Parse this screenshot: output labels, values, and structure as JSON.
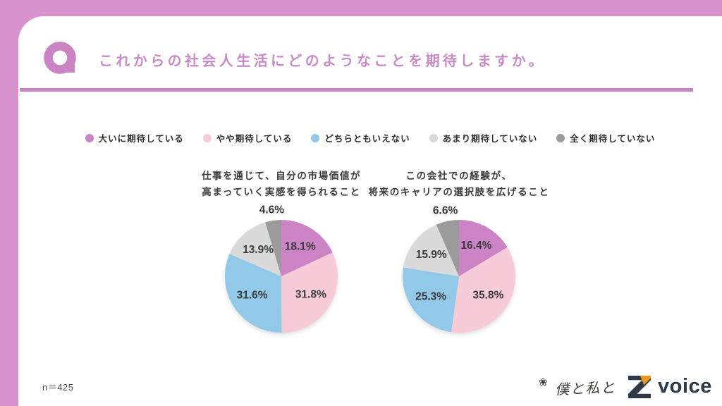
{
  "page": {
    "accent_pink": "#d893cf",
    "line_pink": "#ca84c3",
    "title_pink": "#c98bc5",
    "background": "#ffffff"
  },
  "header": {
    "q_badge": "Q",
    "title": "これからの社会人生活にどのようなことを期待しますか。"
  },
  "legend": {
    "items": [
      {
        "label": "大いに期待している",
        "color": "#cc84c6"
      },
      {
        "label": "やや期待している",
        "color": "#f8cbd9"
      },
      {
        "label": "どちらともいえない",
        "color": "#92c9e9"
      },
      {
        "label": "あまり期待していない",
        "color": "#dadada"
      },
      {
        "label": "全く期待していない",
        "color": "#9b9b9b"
      }
    ]
  },
  "chart_data": [
    {
      "type": "pie",
      "title_lines": [
        "仕事を通じて、自分の市場価値が",
        "高まっていく実感を得られること"
      ],
      "categories": [
        "大いに期待している",
        "やや期待している",
        "どちらともいえない",
        "あまり期待していない",
        "全く期待していない"
      ],
      "values": [
        18.1,
        31.8,
        31.6,
        13.9,
        4.6
      ],
      "labels": [
        "18.1%",
        "31.8%",
        "31.6%",
        "13.9%",
        "4.6%"
      ],
      "colors": [
        "#cc84c6",
        "#f8cbd9",
        "#92c9e9",
        "#dadada",
        "#9b9b9b"
      ],
      "unit": "%",
      "start_angle": "top",
      "direction": "clockwise"
    },
    {
      "type": "pie",
      "title_lines": [
        "この会社での経験が、",
        "将来のキャリアの選択肢を広げること"
      ],
      "categories": [
        "大いに期待している",
        "やや期待している",
        "どちらともいえない",
        "あまり期待していない",
        "全く期待していない"
      ],
      "values": [
        16.4,
        35.8,
        25.3,
        15.9,
        6.6
      ],
      "labels": [
        "16.4%",
        "35.8%",
        "25.3%",
        "15.9%",
        "6.6%"
      ],
      "colors": [
        "#cc84c6",
        "#f8cbd9",
        "#92c9e9",
        "#dadada",
        "#9b9b9b"
      ],
      "unit": "%",
      "start_angle": "top",
      "direction": "clockwise"
    }
  ],
  "footer": {
    "sample_size": "n＝425",
    "logo": {
      "flower_icon": "❀",
      "handwriting": "僕と私と",
      "brand_letter": "Z",
      "brand_text": "voice",
      "navy": "#2d3a46",
      "orange": "#ef9820"
    }
  }
}
